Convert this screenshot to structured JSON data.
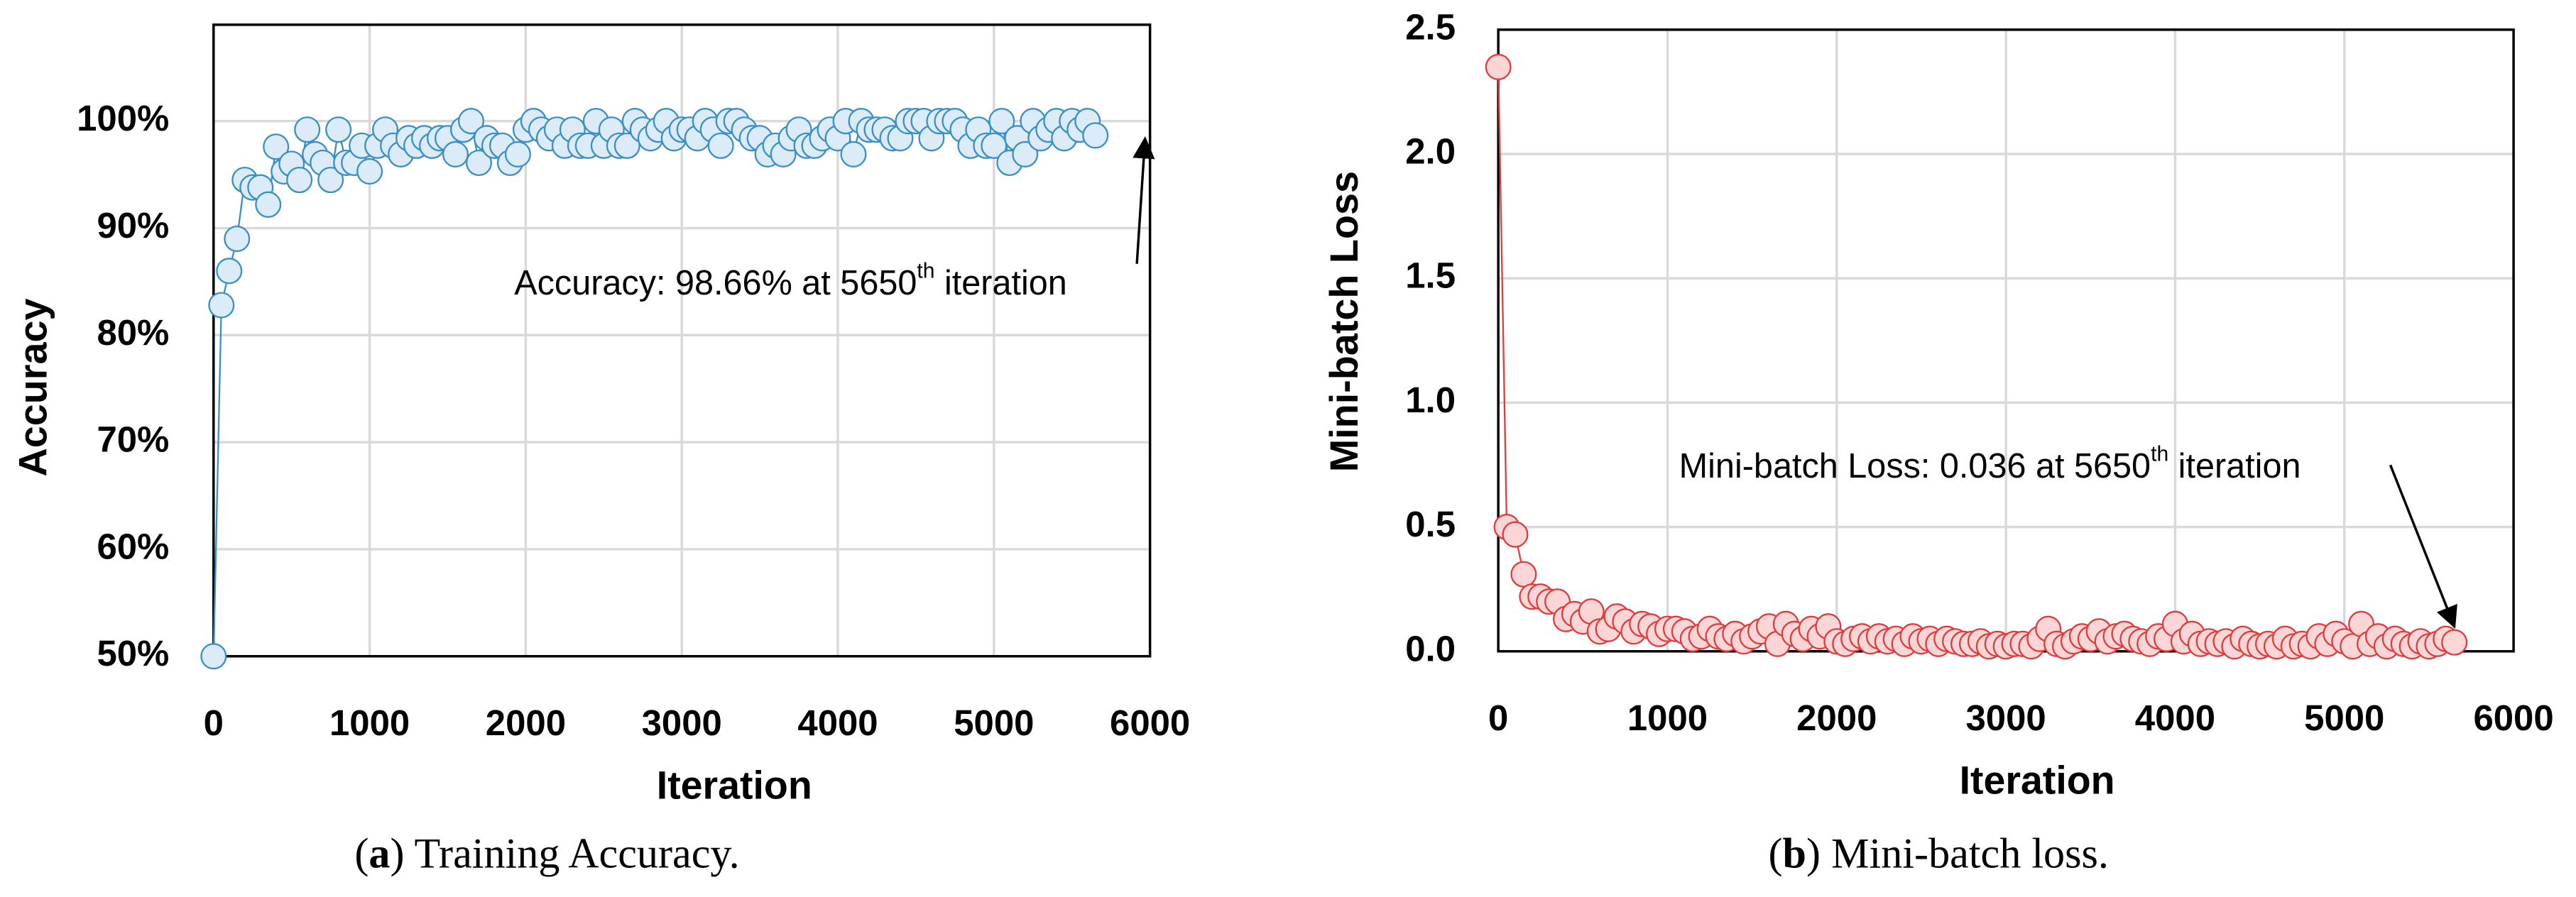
{
  "chart_data": [
    {
      "type": "line",
      "y_label": "Accuracy",
      "x_label": "Iteration",
      "caption": [
        "(",
        "a",
        ") Training Accuracy."
      ],
      "annotation": [
        "Accuracy: 98.66% at 5650",
        "th",
        " iteration"
      ],
      "color": "#3a8fc8",
      "marker_fill": "#dcebf8",
      "grid": true,
      "xlim": [
        0,
        6000
      ],
      "xticks": [
        0,
        1000,
        2000,
        3000,
        4000,
        5000,
        6000
      ],
      "ylim": [
        50,
        109
      ],
      "yticks": [
        {
          "value": 50,
          "label": "50%"
        },
        {
          "value": 60,
          "label": "60%"
        },
        {
          "value": 70,
          "label": "70%"
        },
        {
          "value": 80,
          "label": "80%"
        },
        {
          "value": 90,
          "label": "90%"
        },
        {
          "value": 100,
          "label": "100%"
        }
      ],
      "x": [
        0,
        50,
        100,
        150,
        200,
        250,
        300,
        350,
        400,
        450,
        500,
        550,
        600,
        650,
        700,
        750,
        800,
        850,
        900,
        950,
        1000,
        1050,
        1100,
        1150,
        1200,
        1250,
        1300,
        1350,
        1400,
        1450,
        1500,
        1550,
        1600,
        1650,
        1700,
        1750,
        1800,
        1850,
        1900,
        1950,
        2000,
        2050,
        2100,
        2150,
        2200,
        2250,
        2300,
        2350,
        2400,
        2450,
        2500,
        2550,
        2600,
        2650,
        2700,
        2750,
        2800,
        2850,
        2900,
        2950,
        3000,
        3050,
        3100,
        3150,
        3200,
        3250,
        3300,
        3350,
        3400,
        3450,
        3500,
        3550,
        3600,
        3650,
        3700,
        3750,
        3800,
        3850,
        3900,
        3950,
        4000,
        4050,
        4100,
        4150,
        4200,
        4250,
        4300,
        4350,
        4400,
        4450,
        4500,
        4550,
        4600,
        4650,
        4700,
        4750,
        4800,
        4850,
        4900,
        4950,
        5000,
        5050,
        5100,
        5150,
        5200,
        5250,
        5300,
        5350,
        5400,
        5450,
        5500,
        5550,
        5600,
        5650
      ],
      "values": [
        50,
        82.8,
        86,
        89,
        94.5,
        93.8,
        93.8,
        92.2,
        97.6,
        95.3,
        96,
        94.5,
        99.2,
        96.9,
        96.1,
        94.5,
        99.2,
        96.1,
        96.1,
        97.7,
        95.3,
        97.7,
        99.2,
        97.7,
        96.9,
        98.4,
        97.7,
        98.4,
        97.7,
        98.4,
        98.4,
        96.9,
        99.2,
        100,
        96.1,
        98.4,
        97.7,
        97.7,
        96.1,
        96.9,
        99.2,
        100,
        99.2,
        98.4,
        99.2,
        97.7,
        99.2,
        97.7,
        97.7,
        100,
        97.7,
        99.2,
        97.7,
        97.7,
        100,
        99.2,
        98.4,
        99.2,
        100,
        98.4,
        99.2,
        99.2,
        98.4,
        100,
        99.2,
        97.7,
        100,
        100,
        99.2,
        98.4,
        98.4,
        96.9,
        97.7,
        96.9,
        98.4,
        99.2,
        97.7,
        97.7,
        98.4,
        99.2,
        98.4,
        100,
        96.9,
        100,
        99.2,
        99.2,
        99.2,
        98.4,
        98.4,
        100,
        100,
        100,
        98.4,
        100,
        100,
        100,
        99.2,
        97.7,
        99.2,
        97.7,
        97.7,
        100,
        96.1,
        98.4,
        96.9,
        100,
        98.4,
        99.2,
        100,
        98.4,
        100,
        99.2,
        100,
        98.66
      ]
    },
    {
      "type": "line",
      "y_label": "Mini-batch Loss",
      "x_label": "Iteration",
      "caption": [
        "(",
        "b",
        ") Mini-batch loss."
      ],
      "annotation": [
        "Mini-batch Loss: 0.036 at 5650",
        "th",
        " iteration"
      ],
      "color": "#e03c3c",
      "marker_fill": "#fcd6d6",
      "grid": true,
      "xlim": [
        0,
        6000
      ],
      "xticks": [
        0,
        1000,
        2000,
        3000,
        4000,
        5000,
        6000
      ],
      "ylim": [
        0,
        2.5
      ],
      "yticks": [
        {
          "value": 0,
          "label": "0.0"
        },
        {
          "value": 0.5,
          "label": "0.5"
        },
        {
          "value": 1,
          "label": "1.0"
        },
        {
          "value": 1.5,
          "label": "1.5"
        },
        {
          "value": 2,
          "label": "2.0"
        },
        {
          "value": 2.5,
          "label": "2.5"
        }
      ],
      "x": [
        0,
        50,
        100,
        150,
        200,
        250,
        300,
        350,
        400,
        450,
        500,
        550,
        600,
        650,
        700,
        750,
        800,
        850,
        900,
        950,
        1000,
        1050,
        1100,
        1150,
        1200,
        1250,
        1300,
        1350,
        1400,
        1450,
        1500,
        1550,
        1600,
        1650,
        1700,
        1750,
        1800,
        1850,
        1900,
        1950,
        2000,
        2050,
        2100,
        2150,
        2200,
        2250,
        2300,
        2350,
        2400,
        2450,
        2500,
        2550,
        2600,
        2650,
        2700,
        2750,
        2800,
        2850,
        2900,
        2950,
        3000,
        3050,
        3100,
        3150,
        3200,
        3250,
        3300,
        3350,
        3400,
        3450,
        3500,
        3550,
        3600,
        3650,
        3700,
        3750,
        3800,
        3850,
        3900,
        3950,
        4000,
        4050,
        4100,
        4150,
        4200,
        4250,
        4300,
        4350,
        4400,
        4450,
        4500,
        4550,
        4600,
        4650,
        4700,
        4750,
        4800,
        4850,
        4900,
        4950,
        5000,
        5050,
        5100,
        5150,
        5200,
        5250,
        5300,
        5350,
        5400,
        5450,
        5500,
        5550,
        5600,
        5650
      ],
      "values": [
        2.35,
        0.5,
        0.47,
        0.31,
        0.22,
        0.22,
        0.2,
        0.2,
        0.13,
        0.15,
        0.12,
        0.16,
        0.08,
        0.09,
        0.14,
        0.12,
        0.08,
        0.11,
        0.1,
        0.07,
        0.09,
        0.09,
        0.08,
        0.05,
        0.06,
        0.09,
        0.06,
        0.05,
        0.07,
        0.04,
        0.06,
        0.08,
        0.1,
        0.03,
        0.11,
        0.07,
        0.05,
        0.09,
        0.06,
        0.1,
        0.04,
        0.03,
        0.05,
        0.06,
        0.04,
        0.06,
        0.04,
        0.05,
        0.03,
        0.06,
        0.04,
        0.05,
        0.03,
        0.05,
        0.04,
        0.03,
        0.03,
        0.04,
        0.02,
        0.03,
        0.02,
        0.03,
        0.03,
        0.02,
        0.05,
        0.09,
        0.03,
        0.02,
        0.04,
        0.06,
        0.05,
        0.08,
        0.04,
        0.06,
        0.07,
        0.05,
        0.04,
        0.03,
        0.06,
        0.05,
        0.11,
        0.04,
        0.07,
        0.03,
        0.04,
        0.03,
        0.04,
        0.02,
        0.05,
        0.03,
        0.02,
        0.03,
        0.02,
        0.05,
        0.02,
        0.03,
        0.02,
        0.06,
        0.03,
        0.07,
        0.04,
        0.02,
        0.11,
        0.03,
        0.06,
        0.02,
        0.05,
        0.03,
        0.02,
        0.04,
        0.02,
        0.03,
        0.05,
        0.036
      ]
    }
  ]
}
